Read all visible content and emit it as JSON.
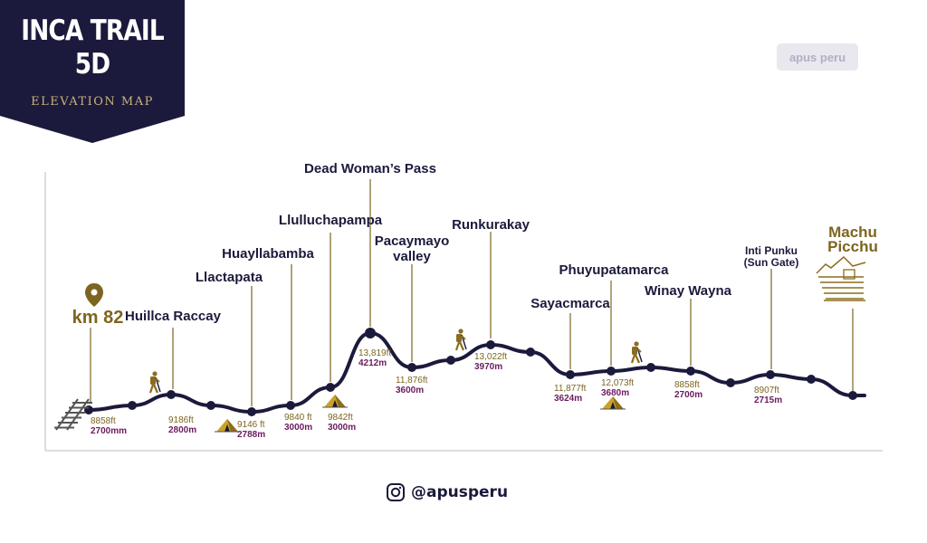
{
  "title": {
    "line1": "INCA TRAIL",
    "line2": "5D",
    "subtitle": "ELEVATION MAP"
  },
  "logo_text": "apus peru",
  "social_handle": "@apusperu",
  "colors": {
    "navy": "#1b1a3c",
    "gold": "#7d6520",
    "purple": "#6b1a5e",
    "tick": "#7d6520"
  },
  "icons": [
    "map-pin-icon",
    "railway-icon",
    "hiker-icon",
    "tent-icon",
    "machu-picchu-icon",
    "instagram-icon"
  ],
  "chart_data": {
    "type": "line",
    "title": "INCA TRAIL 5D ELEVATION MAP",
    "xlabel": "",
    "ylabel": "",
    "points": [
      {
        "name": "km 82",
        "ft": "8858ft",
        "m": "2700mm"
      },
      {
        "name": "Huillca Raccay",
        "ft": "9186ft",
        "m": "2800m"
      },
      {
        "name": "Llactapata",
        "ft": "9146 ft",
        "m": "2788m"
      },
      {
        "name": "Huayllabamba",
        "ft": "9840 ft",
        "m": "3000m"
      },
      {
        "name": "Llulluchapampa",
        "ft": "9842ft",
        "m": "3000m"
      },
      {
        "name": "Dead Woman’s Pass",
        "ft": "13,819ft",
        "m": "4212m"
      },
      {
        "name": "Pacaymayo valley",
        "ft": "11,876ft",
        "m": "3600m"
      },
      {
        "name": "Runkurakay",
        "ft": "13,022ft",
        "m": "3970m"
      },
      {
        "name": "Sayacmarca",
        "ft": "11,877ft",
        "m": "3624m"
      },
      {
        "name": "Phuyupatamarca",
        "ft": "12,073ft",
        "m": "3680m"
      },
      {
        "name": "Winay Wayna",
        "ft": "8858ft",
        "m": "2700m"
      },
      {
        "name": "Inti Punku (Sun Gate)",
        "ft": "8907ft",
        "m": "2715m"
      },
      {
        "name": "Machu Picchu",
        "ft": "",
        "m": ""
      }
    ],
    "grid": false,
    "legend": "none"
  }
}
